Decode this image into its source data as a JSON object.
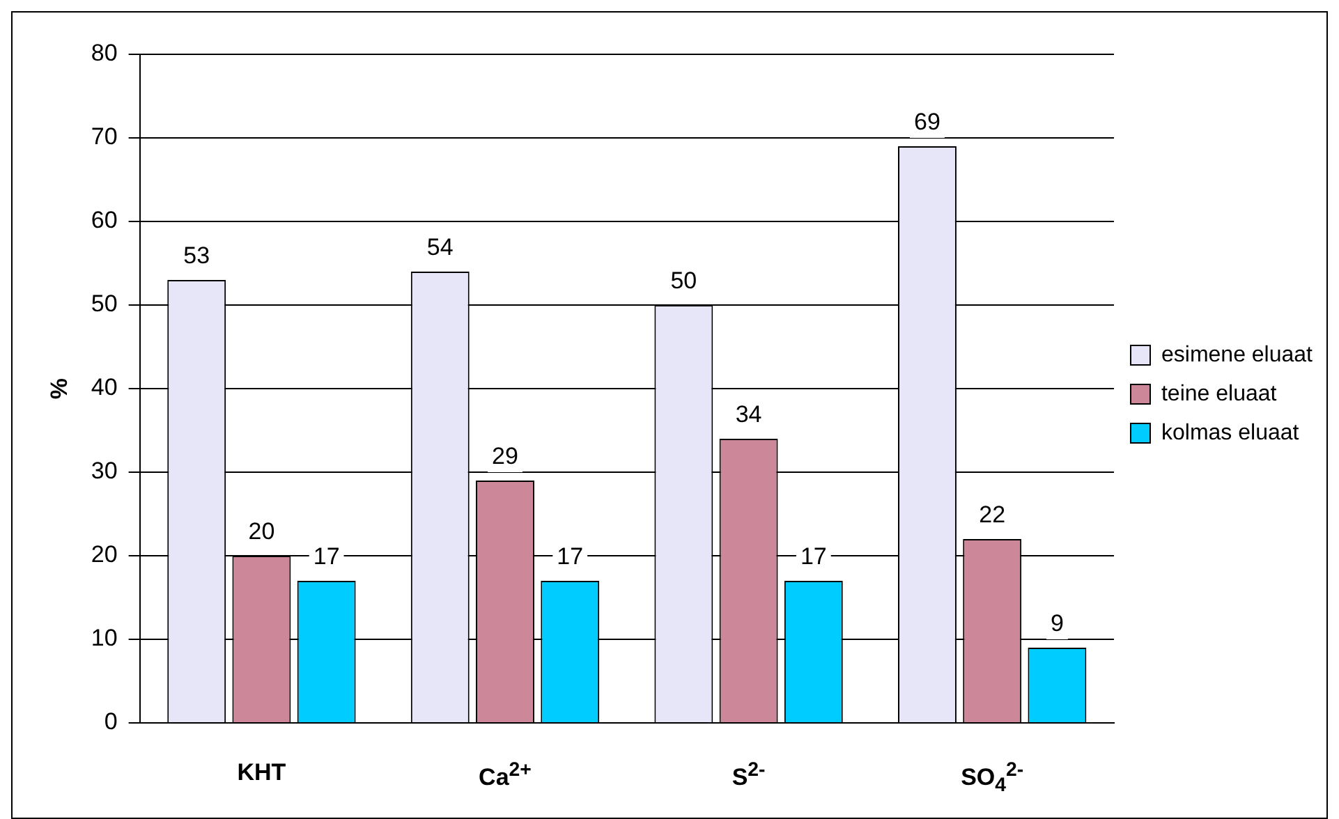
{
  "chart_data": {
    "type": "bar",
    "ylabel": "%",
    "categories": [
      "KHT",
      "Ca$^{2+}$",
      "S$^{2-}$",
      "SO$_{4}$$^{2-}$"
    ],
    "series": [
      {
        "name": "esimene eluaat",
        "color": "#e6e6f8",
        "values": [
          53,
          54,
          50,
          69
        ]
      },
      {
        "name": "teine eluaat",
        "color": "#cc8899",
        "values": [
          20,
          29,
          34,
          22
        ]
      },
      {
        "name": "kolmas eluaat",
        "color": "#00ccff",
        "values": [
          17,
          17,
          17,
          9
        ]
      }
    ],
    "ylim": [
      0,
      80
    ],
    "yticks": [
      0,
      10,
      20,
      30,
      40,
      50,
      60,
      70,
      80
    ],
    "grid": "y",
    "legend": "right",
    "data_labels": true
  }
}
